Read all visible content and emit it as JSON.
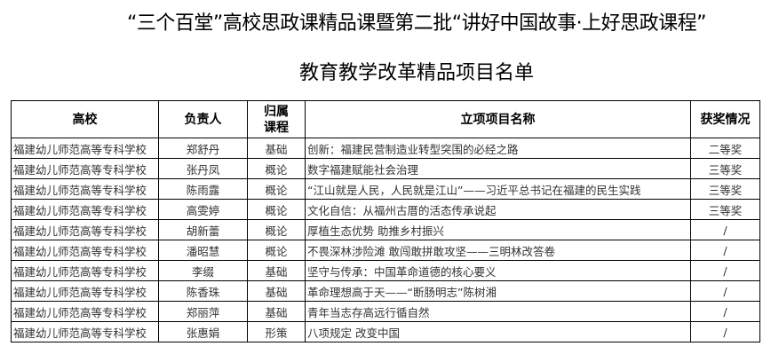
{
  "title_line1": "“三个百堂”高校思政课精品课暨第二批“讲好中国故事·上好思政课程”",
  "title_line2": "教育教学改革精品项目名单",
  "table": {
    "headers": [
      "高校",
      "负责人",
      "归属课程",
      "立项项目名称",
      "获奖情况"
    ],
    "rows": [
      [
        "福建幼儿师范高等专科学校",
        "郑舒丹",
        "基础",
        "创新：福建民营制造业转型突围的必经之路",
        "二等奖"
      ],
      [
        "福建幼儿师范高等专科学校",
        "张丹凤",
        "概论",
        "数字福建赋能社会治理",
        "三等奖"
      ],
      [
        "福建幼儿师范高等专科学校",
        "陈雨露",
        "概论",
        "“江山就是人民，人民就是江山”——习近平总书记在福建的民生实践",
        "三等奖"
      ],
      [
        "福建幼儿师范高等专科学校",
        "高雯婷",
        "概论",
        "文化自信：从福州古厝的活态传承说起",
        "三等奖"
      ],
      [
        "福建幼儿师范高等专科学校",
        "胡新蕾",
        "概论",
        "厚植生态优势 助推乡村振兴",
        "/"
      ],
      [
        "福建幼儿师范高等专科学校",
        "潘昭慧",
        "概论",
        "不畏深林涉险滩  敢闯敢拼敢攻坚——三明林改答卷",
        "/"
      ],
      [
        "福建幼儿师范高等专科学校",
        "李缀",
        "基础",
        "坚守与传承：中国革命道德的核心要义",
        "/"
      ],
      [
        "福建幼儿师范高等专科学校",
        "陈香珠",
        "基础",
        "革命理想高于天——“断肠明志”陈树湘",
        "/"
      ],
      [
        "福建幼儿师范高等专科学校",
        "郑丽萍",
        "基础",
        "青年当志存高远行循自然",
        "/"
      ],
      [
        "福建幼儿师范高等专科学校",
        "张惠娟",
        "形策",
        "八项规定 改变中国",
        "/"
      ]
    ]
  }
}
